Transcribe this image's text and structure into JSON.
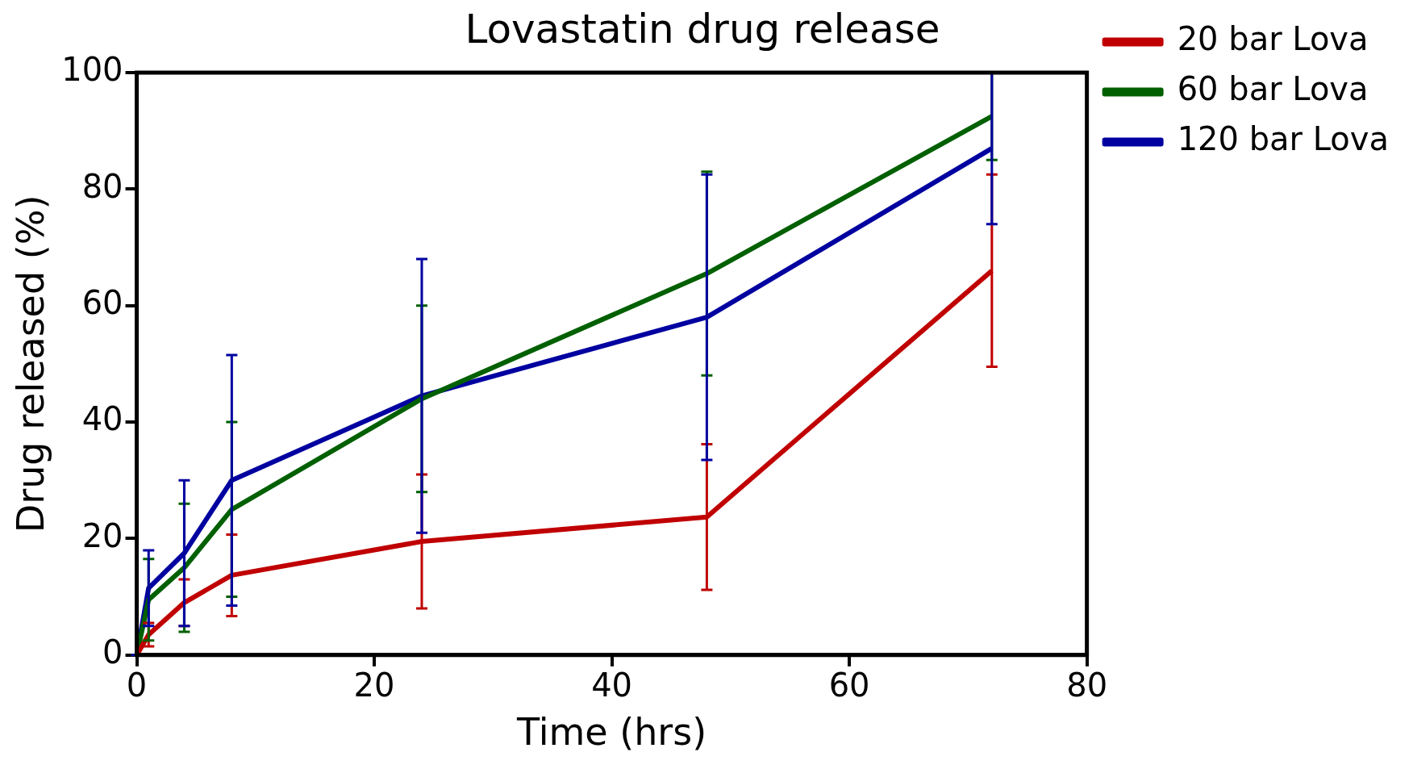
{
  "chart_data": {
    "type": "line",
    "title": "Lovastatin drug release",
    "xlabel": "Time (hrs)",
    "ylabel": "Drug released (%)",
    "x": [
      0,
      1,
      4,
      8,
      24,
      48,
      72
    ],
    "series": [
      {
        "name": "20 bar Lova",
        "color": "#c00000",
        "values": [
          0,
          3.5,
          9,
          13.7,
          19.5,
          23.7,
          66
        ],
        "errors": [
          0,
          2,
          4,
          7,
          11.5,
          12.5,
          16.5
        ]
      },
      {
        "name": "60 bar Lova",
        "color": "#006000",
        "values": [
          0,
          9.5,
          15,
          25,
          44,
          65.5,
          92.5
        ],
        "errors": [
          0,
          7,
          11,
          15,
          16,
          17.5,
          7.5
        ]
      },
      {
        "name": "120 bar Lova",
        "color": "#0000a0",
        "values": [
          0,
          11.5,
          17.5,
          30,
          44.5,
          58,
          87
        ],
        "errors": [
          0,
          6.5,
          12.5,
          21.5,
          23.5,
          24.5,
          13
        ]
      }
    ],
    "xlim": [
      0,
      80
    ],
    "xticks": [
      0,
      20,
      40,
      60,
      80
    ],
    "ylim": [
      0,
      100
    ],
    "yticks": [
      0,
      20,
      40,
      60,
      80,
      100
    ],
    "grid": false,
    "legend": "right",
    "marker": "none",
    "line_style": "solid"
  }
}
